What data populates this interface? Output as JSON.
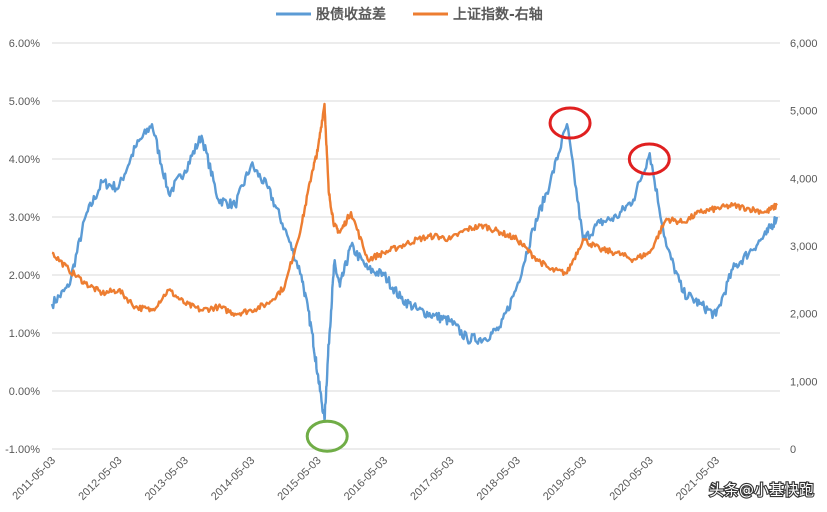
{
  "chart_data": {
    "type": "line",
    "legend_position": "top-center",
    "grid": "horizontal",
    "x_dates": [
      "2011-05-03",
      "2011-08-03",
      "2011-11-03",
      "2012-02-03",
      "2012-05-03",
      "2012-08-03",
      "2012-11-03",
      "2013-02-03",
      "2013-05-03",
      "2013-08-03",
      "2013-11-03",
      "2014-02-03",
      "2014-05-03",
      "2014-08-03",
      "2014-11-03",
      "2015-02-03",
      "2015-04-03",
      "2015-05-03",
      "2015-06-10",
      "2015-07-03",
      "2015-08-03",
      "2015-09-03",
      "2015-11-03",
      "2016-02-03",
      "2016-05-03",
      "2016-08-03",
      "2016-11-03",
      "2017-02-03",
      "2017-05-03",
      "2017-08-03",
      "2017-11-03",
      "2018-02-03",
      "2018-05-03",
      "2018-08-03",
      "2018-11-03",
      "2019-02-03",
      "2019-05-03",
      "2019-08-03",
      "2019-11-03",
      "2020-02-03",
      "2020-05-03",
      "2020-08-03",
      "2020-11-03",
      "2021-02-03",
      "2021-05-03",
      "2021-08-03",
      "2021-11-03",
      "2022-02-03",
      "2022-04-03"
    ],
    "series": [
      {
        "name": "股债收益差",
        "axis": "left",
        "color": "#5b9bd5",
        "values": [
          1.5,
          1.8,
          3.0,
          3.6,
          3.5,
          4.2,
          4.6,
          3.4,
          3.8,
          4.4,
          3.3,
          3.2,
          3.9,
          3.5,
          2.8,
          2.0,
          1.0,
          0.3,
          -0.5,
          0.8,
          2.2,
          1.8,
          2.5,
          2.1,
          2.0,
          1.6,
          1.4,
          1.3,
          1.2,
          0.9,
          0.9,
          1.1,
          1.8,
          2.8,
          3.6,
          4.6,
          2.6,
          2.9,
          3.0,
          3.3,
          4.1,
          2.5,
          1.7,
          1.5,
          1.3,
          2.1,
          2.4,
          2.7,
          3.0
        ]
      },
      {
        "name": "上证指数-右轴",
        "axis": "right",
        "color": "#ed7d31",
        "values": [
          2900,
          2650,
          2450,
          2300,
          2350,
          2100,
          2050,
          2350,
          2150,
          2050,
          2100,
          2000,
          2050,
          2150,
          2400,
          3300,
          4100,
          4400,
          5100,
          3800,
          3300,
          3200,
          3500,
          2800,
          2900,
          3000,
          3100,
          3150,
          3100,
          3250,
          3300,
          3200,
          3100,
          2850,
          2650,
          2600,
          3100,
          2950,
          2900,
          2800,
          2900,
          3400,
          3350,
          3500,
          3550,
          3600,
          3550,
          3500,
          3600
        ]
      }
    ],
    "y_left": {
      "min": -1.0,
      "max": 6.0,
      "step": 1.0,
      "format": "percent2"
    },
    "y_right": {
      "min": 0,
      "max": 6000,
      "step": 1000,
      "format": "comma"
    },
    "x_ticks": [
      "2011-05-03",
      "2012-05-03",
      "2013-05-03",
      "2014-05-03",
      "2015-05-03",
      "2016-05-03",
      "2017-05-03",
      "2018-05-03",
      "2019-05-03",
      "2020-05-03",
      "2021-05-03"
    ],
    "x_ticks_note": "last two tick labels are partly covered by the watermark",
    "annotations": [
      {
        "shape": "ellipse",
        "color": "#e02020",
        "x": "2019-02-20",
        "y_left": 4.62
      },
      {
        "shape": "ellipse",
        "color": "#e02020",
        "x": "2020-05-01",
        "y_left": 4.0
      },
      {
        "shape": "ellipse",
        "color": "#70ad47",
        "x": "2015-06-25",
        "y_left": -0.78
      }
    ]
  },
  "watermark": "头条@小基快跑",
  "legend_icon": "line-swatch"
}
